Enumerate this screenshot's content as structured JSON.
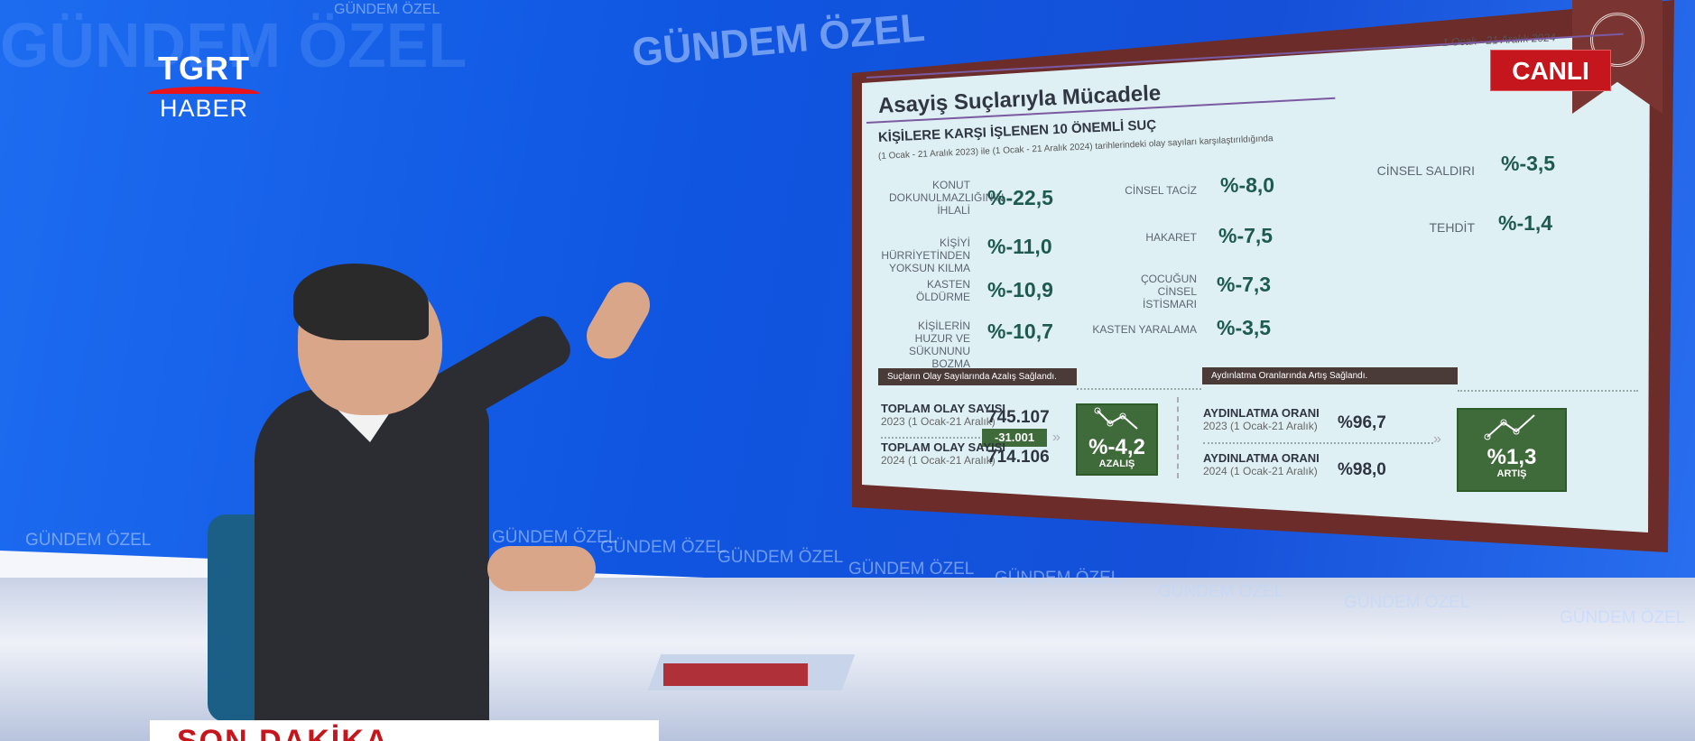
{
  "channel": {
    "logo_top": "TGRT",
    "logo_bottom": "HABER",
    "program_watermark": "GÜNDEM ÖZEL",
    "live_badge": "CANLI",
    "ticker": "SON DAKİKA",
    "accent": "#c4161c"
  },
  "slide": {
    "date_range": "1 Ocak - 21 Aralık 2024",
    "title": "Asayiş Suçlarıyla Mücadele",
    "heading": "KİŞİLERE KARŞI İŞLENEN 10 ÖNEMLİ SUÇ",
    "subheading": "(1 Ocak - 21 Aralık 2023) ile (1 Ocak - 21 Aralık 2024) tarihlerindeki olay sayıları karşılaştırıldığında",
    "crimes": [
      {
        "label": "KONUT DOKUNULMAZLIĞININ İHLALİ",
        "value": "%-22,5"
      },
      {
        "label": "KİŞİYİ HÜRRİYETİNDEN YOKSUN KILMA",
        "value": "%-11,0"
      },
      {
        "label": "KASTEN ÖLDÜRME",
        "value": "%-10,9"
      },
      {
        "label": "KİŞİLERİN HUZUR VE SÜKUNUNU BOZMA",
        "value": "%-10,7"
      },
      {
        "label": "CİNSEL TACİZ",
        "value": "%-8,0"
      },
      {
        "label": "HAKARET",
        "value": "%-7,5"
      },
      {
        "label": "ÇOCUĞUN CİNSEL İSTİSMARI",
        "value": "%-7,3"
      },
      {
        "label": "KASTEN YARALAMA",
        "value": "%-3,5"
      },
      {
        "label": "CİNSEL SALDIRI",
        "value": "%-3,5"
      },
      {
        "label": "TEHDİT",
        "value": "%-1,4"
      }
    ],
    "incidents": {
      "banner": "Suçların Olay Sayılarında Azalış Sağlandı.",
      "row1_label": "TOPLAM OLAY SAYISI",
      "row1_period": "2023 (1 Ocak-21 Aralık)",
      "row1_value": "745.107",
      "row2_label": "TOPLAM OLAY SAYISI",
      "row2_period": "2024 (1 Ocak-21 Aralık)",
      "row2_value": "714.106",
      "difference": "-31.001",
      "change": "%-4,2",
      "change_word": "AZALIŞ"
    },
    "clearance": {
      "banner": "Aydınlatma Oranlarında Artış Sağlandı.",
      "row1_label": "AYDINLATMA ORANI",
      "row1_period": "2023 (1 Ocak-21 Aralık)",
      "row1_value": "%96,7",
      "row2_label": "AYDINLATMA ORANI",
      "row2_period": "2024 (1 Ocak-21 Aralık)",
      "row2_value": "%98,0",
      "change": "%1,3",
      "change_word": "ARTIŞ"
    }
  }
}
